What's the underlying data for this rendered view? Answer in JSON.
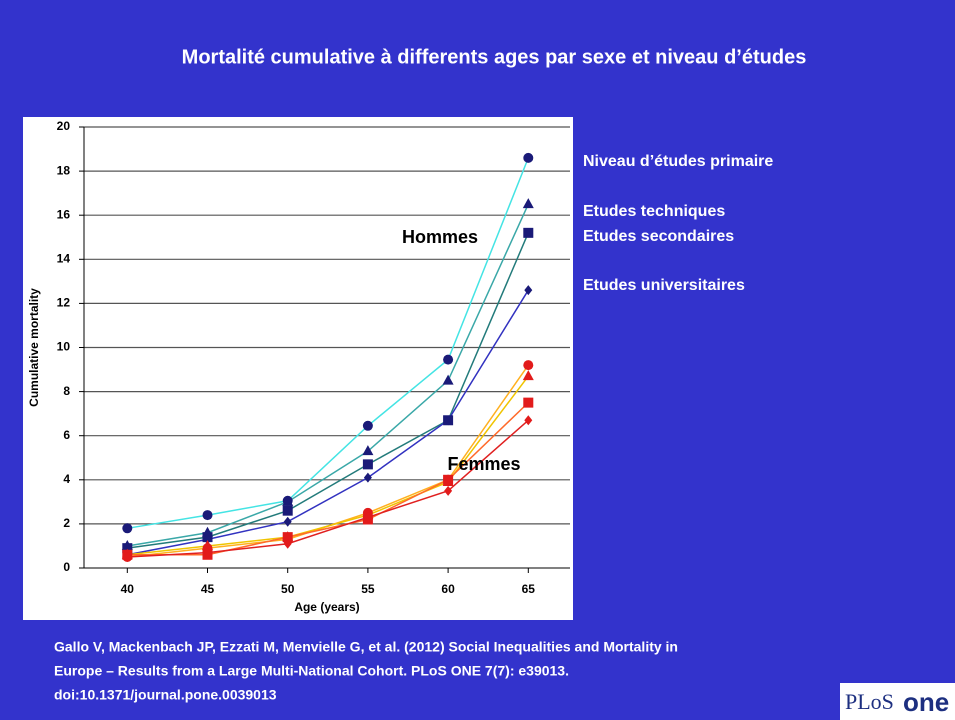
{
  "slide_title": "Mortalité cumulative à differents ages par sexe et niveau d’études",
  "citation": [
    "Gallo V, Mackenbach JP, Ezzati M, Menvielle G, et al. (2012) Social Inequalities and Mortality in",
    "Europe – Results from a Large Multi-National Cohort. PLoS ONE 7(7): e39013.",
    "doi:10.1371/journal.pone.0039013"
  ],
  "logo": {
    "left": "PLoS",
    "right": "one"
  },
  "chart_data": {
    "type": "line",
    "x_label": "Age (years)",
    "y_label": "Cumulative mortality",
    "x": [
      40,
      45,
      50,
      55,
      60,
      65
    ],
    "xlim": [
      37.3,
      67.6
    ],
    "xticks": [
      40,
      45,
      50,
      55,
      60,
      65
    ],
    "ylim": [
      0,
      20
    ],
    "yticks": [
      0,
      2,
      4,
      6,
      8,
      10,
      12,
      14,
      16,
      18,
      20
    ],
    "grid": true,
    "legend_labels": [
      "Niveau d’études primaire",
      "Etudes techniques",
      "Etudes secondaires",
      "Etudes universitaires"
    ],
    "annotations": [
      "Hommes",
      "Femmes"
    ],
    "series": [
      {
        "color": "#44e4e4",
        "marker": "circle",
        "marker_color": "#1a1a78",
        "values": [
          1.8,
          2.4,
          3.05,
          6.45,
          9.45,
          18.6
        ]
      },
      {
        "color": "#3aa8a8",
        "marker": "triangle",
        "marker_color": "#1a1a78",
        "values": [
          1.0,
          1.6,
          3.0,
          5.3,
          8.5,
          16.5
        ]
      },
      {
        "color": "#237b7b",
        "marker": "square",
        "marker_color": "#1a1a78",
        "values": [
          0.9,
          1.4,
          2.6,
          4.7,
          6.7,
          15.2
        ]
      },
      {
        "color": "#3232c0",
        "marker": "diamond",
        "marker_color": "#1a1a78",
        "values": [
          0.6,
          1.3,
          2.1,
          4.1,
          6.7,
          12.6
        ]
      },
      {
        "color": "#ffb020",
        "marker": "circle",
        "marker_color": "#e21b1b",
        "values": [
          0.5,
          0.9,
          1.3,
          2.5,
          4.0,
          9.2
        ]
      },
      {
        "color": "#f0c400",
        "marker": "triangle",
        "marker_color": "#e21b1b",
        "values": [
          0.6,
          1.0,
          1.4,
          2.4,
          3.9,
          8.7
        ]
      },
      {
        "color": "#ff6a2a",
        "marker": "square",
        "marker_color": "#e21b1b",
        "values": [
          0.6,
          0.6,
          1.4,
          2.2,
          4.0,
          7.5
        ]
      },
      {
        "color": "#e02020",
        "marker": "diamond",
        "marker_color": "#e21b1b",
        "values": [
          0.5,
          0.7,
          1.1,
          2.3,
          3.5,
          6.7
        ]
      }
    ]
  }
}
